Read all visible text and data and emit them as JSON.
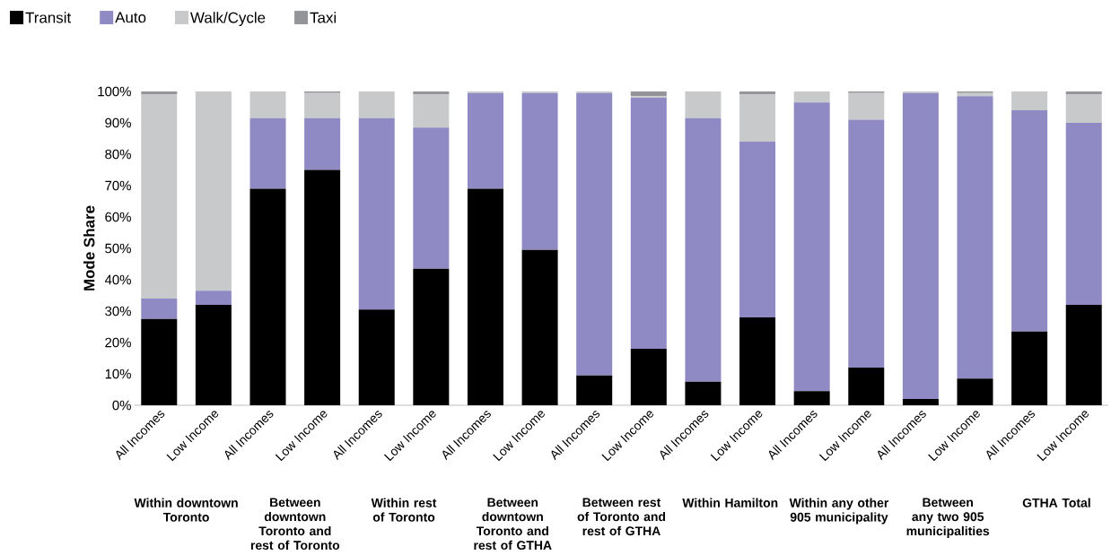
{
  "chart_data": {
    "type": "bar",
    "stacked": true,
    "ylabel": "Mode Share",
    "categories": [
      "All Incomes",
      "Low Income",
      "All Incomes",
      "Low Income",
      "All Incomes",
      "Low Income",
      "All Incomes",
      "Low Income",
      "All Incomes",
      "Low Income",
      "All Incomes",
      "Low Income",
      "All Incomes",
      "Low Income",
      "All Incomes",
      "Low Income",
      "All Incomes",
      "Low Income"
    ],
    "series": [
      {
        "name": "Transit",
        "color": "#000000",
        "values": [
          27.5,
          32,
          69,
          75,
          30.5,
          43.5,
          69,
          49.5,
          9.5,
          18,
          7.5,
          28,
          4.5,
          12,
          2,
          8.5,
          23.5,
          32
        ]
      },
      {
        "name": "Auto",
        "color": "#8f8ac3",
        "values": [
          6.5,
          4.5,
          22.5,
          16.5,
          61,
          45,
          30.5,
          50,
          90,
          80,
          84,
          56,
          92,
          79,
          97.5,
          90,
          70.5,
          58
        ]
      },
      {
        "name": "Walk/Cycle",
        "color": "#c8c9cb",
        "values": [
          65,
          63.5,
          8.5,
          8,
          8.5,
          10.5,
          0.5,
          0.5,
          0.5,
          0.5,
          8.5,
          15,
          3.5,
          8.5,
          0.5,
          1,
          6,
          9
        ]
      },
      {
        "name": "Taxi",
        "color": "#939598",
        "values": [
          1,
          0,
          0,
          0.5,
          0,
          1,
          0,
          0,
          0,
          1.5,
          0,
          1,
          0,
          0.5,
          0,
          0.5,
          0,
          1
        ]
      }
    ],
    "ylim": [
      0,
      100
    ],
    "yticks": [
      {
        "value": 0,
        "label": "0%"
      },
      {
        "value": 10,
        "label": "10%"
      },
      {
        "value": 20,
        "label": "20%"
      },
      {
        "value": 30,
        "label": "30%"
      },
      {
        "value": 40,
        "label": "40%"
      },
      {
        "value": 50,
        "label": "50%"
      },
      {
        "value": 60,
        "label": "60%"
      },
      {
        "value": 70,
        "label": "70%"
      },
      {
        "value": 80,
        "label": "80%"
      },
      {
        "value": 90,
        "label": "90%"
      },
      {
        "value": 100,
        "label": "100%"
      }
    ],
    "legend": "top left",
    "annotations": [
      "Within downtown Toronto",
      "Between downtown Toronto and rest of Toronto",
      "Within rest of Toronto",
      "Between downtown Toronto and rest of GTHA",
      "Between rest of Toronto and rest of GTHA",
      "Within Hamilton",
      "Within any other 905 municipality",
      "Between any two 905 municipalities",
      "GTHA Total"
    ]
  }
}
